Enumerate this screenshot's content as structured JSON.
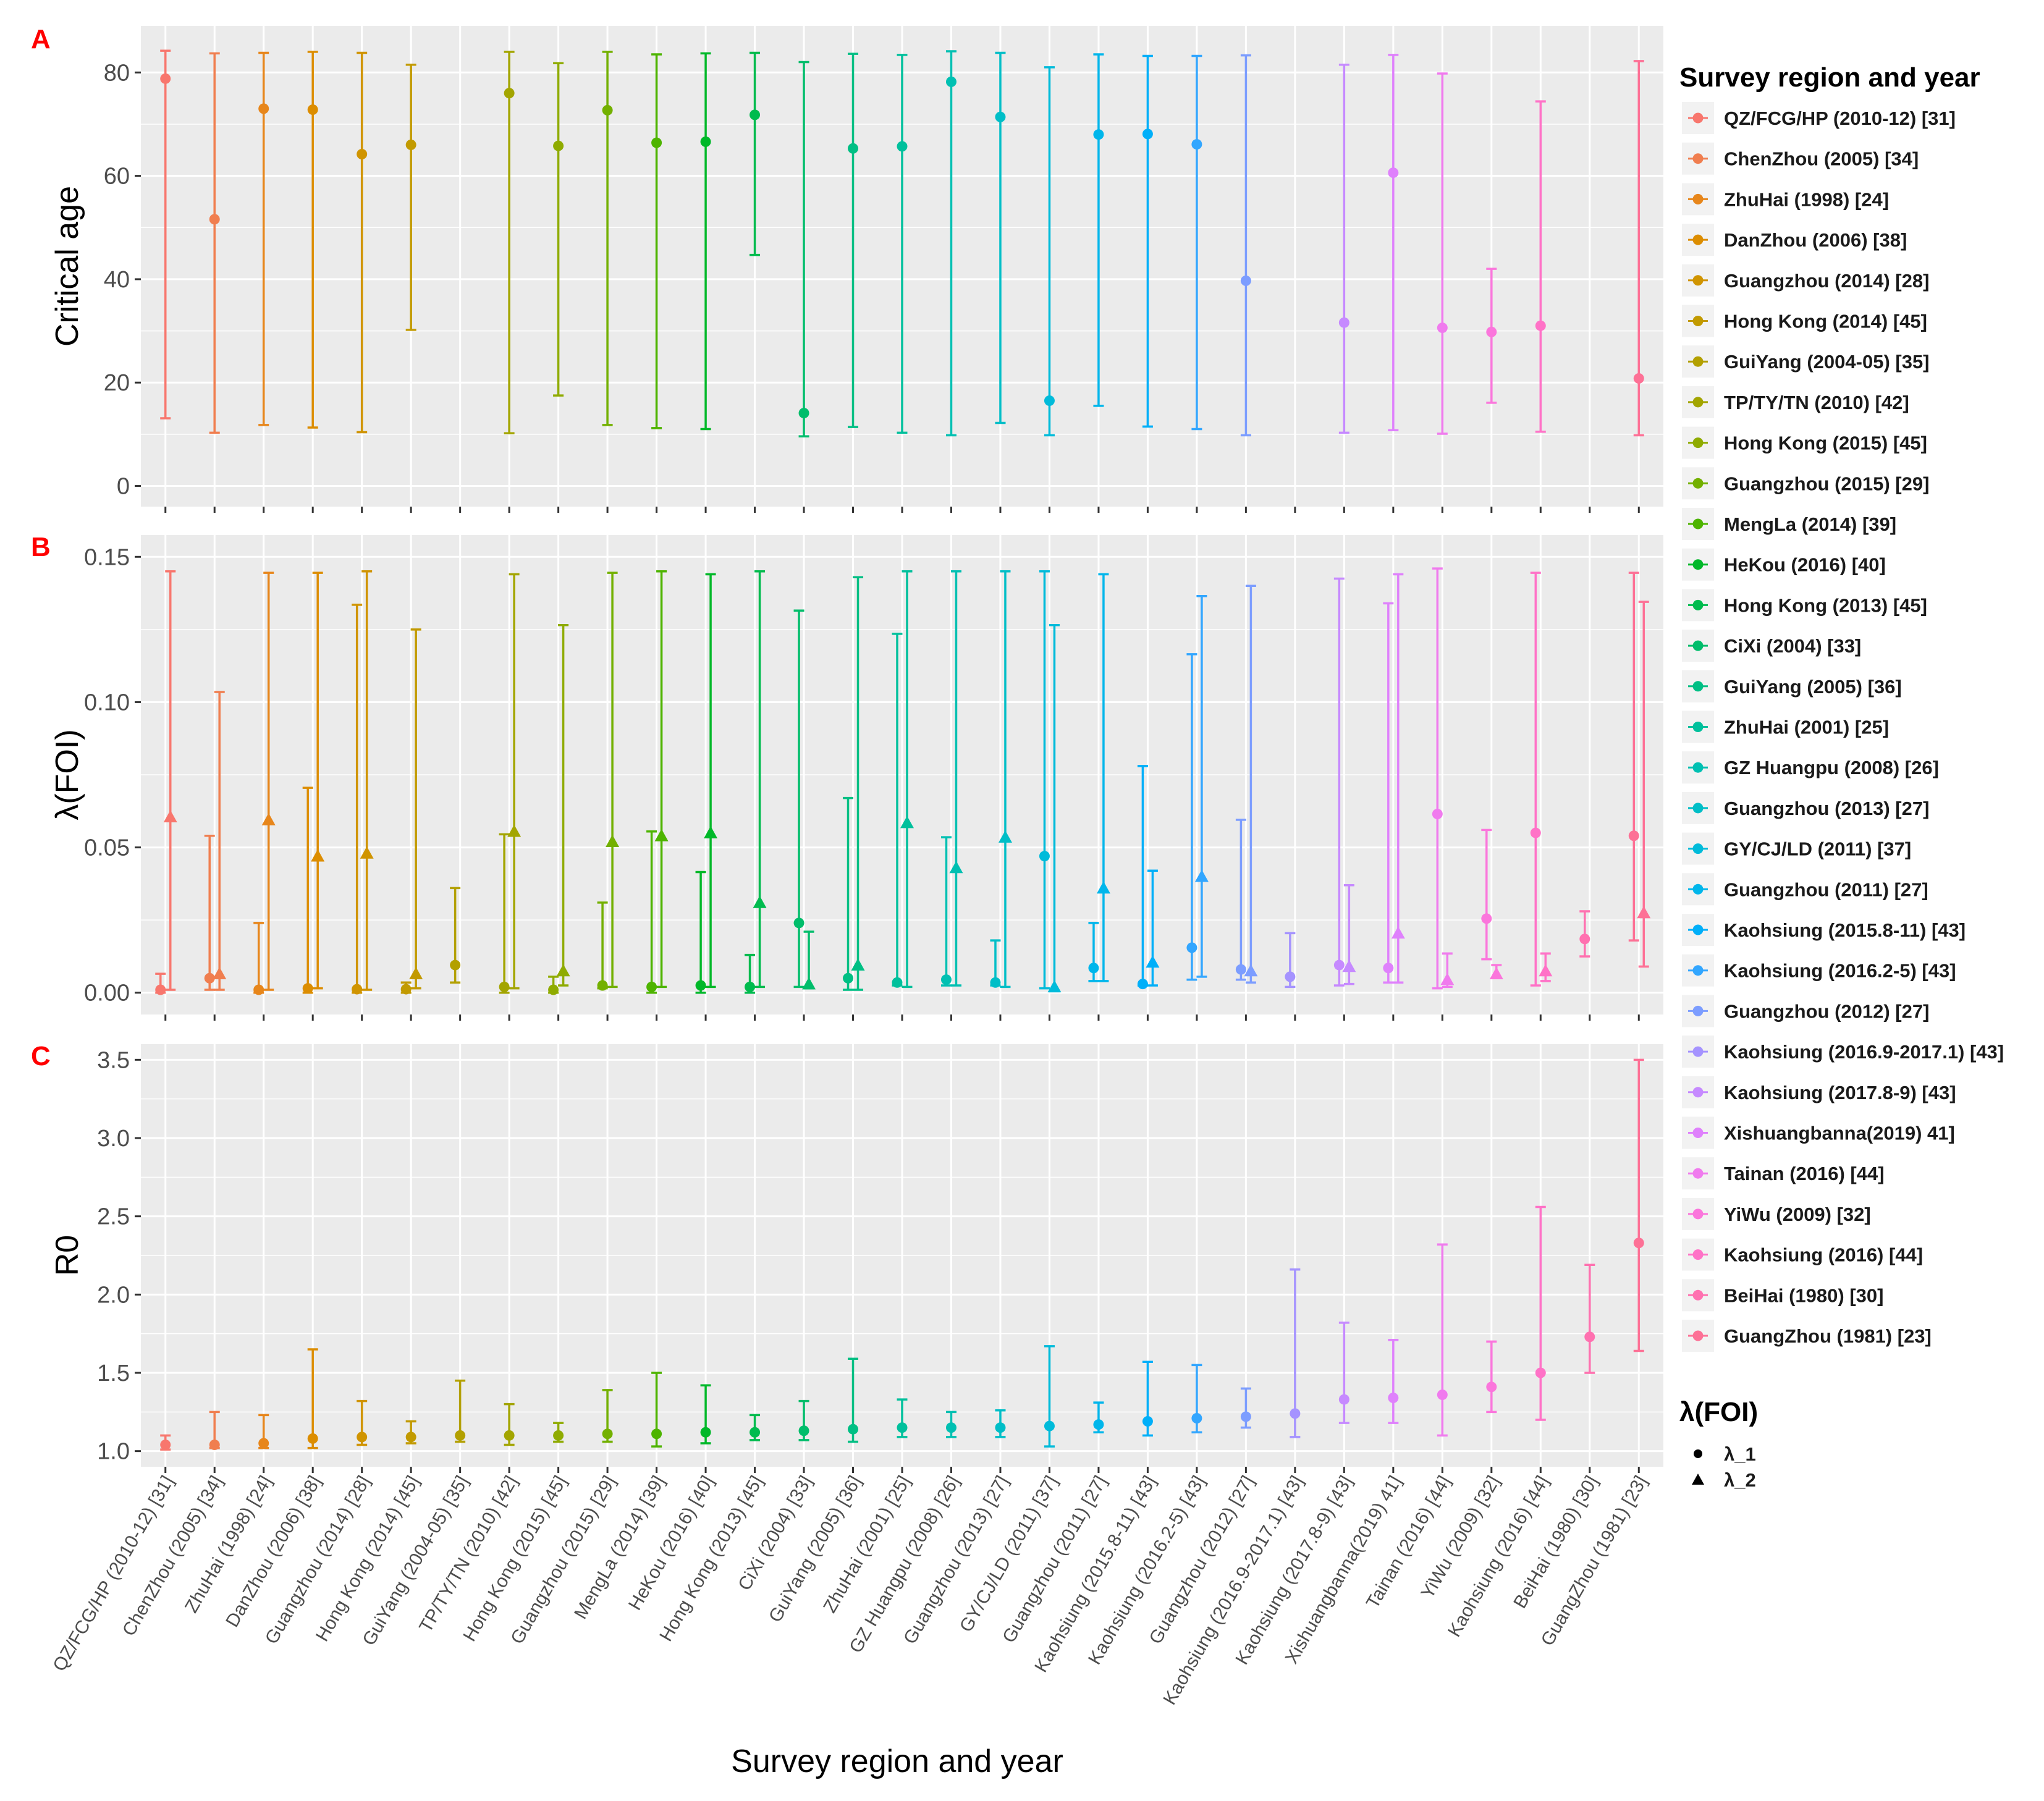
{
  "chart_data": {
    "type": "errorbar",
    "categories": [
      "QZ/FCG/HP (2010-12) [31]",
      "ChenZhou (2005) [34]",
      "ZhuHai (1998) [24]",
      "DanZhou (2006) [38]",
      "Guangzhou (2014) [28]",
      "Hong Kong (2014) [45]",
      "GuiYang (2004-05) [35]",
      "TP/TY/TN (2010) [42]",
      "Hong Kong (2015) [45]",
      "Guangzhou (2015) [29]",
      "MengLa (2014) [39]",
      "HeKou (2016) [40]",
      "Hong Kong (2013) [45]",
      "CiXi (2004) [33]",
      "GuiYang (2005) [36]",
      "ZhuHai (2001) [25]",
      "GZ Huangpu (2008) [26]",
      "Guangzhou (2013) [27]",
      "GY/CJ/LD (2011) [37]",
      "Guangzhou (2011) [27]",
      "Kaohsiung (2015.8-11) [43]",
      "Kaohsiung (2016.2-5) [43]",
      "Guangzhou (2012) [27]",
      "Kaohsiung (2016.9-2017.1) [43]",
      "Kaohsiung (2017.8-9) [43]",
      "Xishuangbanna(2019) 41]",
      "Tainan (2016) [44]",
      "YiWu (2009) [32]",
      "Kaohsiung (2016) [44]",
      "BeiHai (1980) [30]",
      "GuangZhou (1981) [23]"
    ],
    "colors": [
      "#f8766d",
      "#f07e4f",
      "#e7861b",
      "#dc8d00",
      "#d09400",
      "#c29a00",
      "#b3a000",
      "#a3a500",
      "#8fab00",
      "#73b000",
      "#4eb400",
      "#00b829",
      "#00bb4e",
      "#00bd6b",
      "#00bf84",
      "#00c09c",
      "#00c0b2",
      "#00bec7",
      "#00bbda",
      "#00b6eb",
      "#00aff9",
      "#32a6ff",
      "#7c9dff",
      "#a593ff",
      "#c68aff",
      "#df81fc",
      "#f07bee",
      "#fb76dc",
      "#ff72c7",
      "#ff71b0",
      "#fd7196"
    ],
    "panels": [
      {
        "label": "A",
        "ylabel": "Critical age",
        "ylim": [
          -4,
          89
        ],
        "yticks": [
          0,
          20,
          40,
          60,
          80
        ],
        "ytick_labels": [
          "0",
          "20",
          "40",
          "60",
          "80"
        ],
        "points": [
          {
            "cat": 0,
            "y": 78.8,
            "lo": 13.1,
            "hi": 84.2
          },
          {
            "cat": 1,
            "y": 51.6,
            "lo": 10.3,
            "hi": 83.7
          },
          {
            "cat": 2,
            "y": 73.0,
            "lo": 11.8,
            "hi": 83.8
          },
          {
            "cat": 3,
            "y": 72.8,
            "lo": 11.3,
            "hi": 84.0
          },
          {
            "cat": 4,
            "y": 64.2,
            "lo": 10.4,
            "hi": 83.8
          },
          {
            "cat": 5,
            "y": 66.0,
            "lo": 30.2,
            "hi": 81.5
          },
          {
            "cat": 7,
            "y": 76.0,
            "lo": 10.2,
            "hi": 84.0
          },
          {
            "cat": 8,
            "y": 65.8,
            "lo": 17.5,
            "hi": 81.8
          },
          {
            "cat": 9,
            "y": 72.7,
            "lo": 11.8,
            "hi": 84.0
          },
          {
            "cat": 10,
            "y": 66.4,
            "lo": 11.2,
            "hi": 83.5
          },
          {
            "cat": 11,
            "y": 66.6,
            "lo": 11.0,
            "hi": 83.7
          },
          {
            "cat": 12,
            "y": 71.8,
            "lo": 44.7,
            "hi": 83.8
          },
          {
            "cat": 13,
            "y": 14.1,
            "lo": 9.6,
            "hi": 82.0
          },
          {
            "cat": 14,
            "y": 65.3,
            "lo": 11.4,
            "hi": 83.6
          },
          {
            "cat": 15,
            "y": 65.7,
            "lo": 10.3,
            "hi": 83.4
          },
          {
            "cat": 16,
            "y": 78.2,
            "lo": 9.8,
            "hi": 84.1
          },
          {
            "cat": 17,
            "y": 71.4,
            "lo": 12.2,
            "hi": 83.8
          },
          {
            "cat": 18,
            "y": 16.5,
            "lo": 9.8,
            "hi": 81.0
          },
          {
            "cat": 19,
            "y": 68.0,
            "lo": 15.5,
            "hi": 83.5
          },
          {
            "cat": 20,
            "y": 68.1,
            "lo": 11.5,
            "hi": 83.2
          },
          {
            "cat": 21,
            "y": 66.1,
            "lo": 11.0,
            "hi": 83.2
          },
          {
            "cat": 22,
            "y": 39.7,
            "lo": 9.8,
            "hi": 83.3
          },
          {
            "cat": 24,
            "y": 31.6,
            "lo": 10.3,
            "hi": 81.5
          },
          {
            "cat": 25,
            "y": 60.6,
            "lo": 10.8,
            "hi": 83.4
          },
          {
            "cat": 26,
            "y": 30.6,
            "lo": 10.1,
            "hi": 79.8
          },
          {
            "cat": 27,
            "y": 29.8,
            "lo": 16.1,
            "hi": 42.0
          },
          {
            "cat": 28,
            "y": 31.0,
            "lo": 10.5,
            "hi": 74.4
          },
          {
            "cat": 30,
            "y": 20.8,
            "lo": 9.8,
            "hi": 82.2
          }
        ]
      },
      {
        "label": "B",
        "ylabel": "λ(FOI)",
        "ylim": [
          -0.0075,
          0.1575
        ],
        "yticks": [
          0,
          0.05,
          0.1,
          0.15
        ],
        "ytick_labels": [
          "0.00",
          "0.05",
          "0.10",
          "0.15"
        ],
        "points": [
          {
            "cat": 0,
            "shape": "circle",
            "y": 0.001,
            "lo": 0.0,
            "hi": 0.0065
          },
          {
            "cat": 0,
            "shape": "triangle",
            "y": 0.0605,
            "lo": 0.001,
            "hi": 0.145
          },
          {
            "cat": 1,
            "shape": "circle",
            "y": 0.005,
            "lo": 0.001,
            "hi": 0.054
          },
          {
            "cat": 1,
            "shape": "triangle",
            "y": 0.0065,
            "lo": 0.001,
            "hi": 0.1035
          },
          {
            "cat": 2,
            "shape": "circle",
            "y": 0.001,
            "lo": 0.0,
            "hi": 0.024
          },
          {
            "cat": 2,
            "shape": "triangle",
            "y": 0.0595,
            "lo": 0.001,
            "hi": 0.1445
          },
          {
            "cat": 3,
            "shape": "circle",
            "y": 0.0015,
            "lo": 0.0,
            "hi": 0.0705
          },
          {
            "cat": 3,
            "shape": "triangle",
            "y": 0.047,
            "lo": 0.0015,
            "hi": 0.1445
          },
          {
            "cat": 4,
            "shape": "circle",
            "y": 0.0012,
            "lo": 0.0,
            "hi": 0.1335
          },
          {
            "cat": 4,
            "shape": "triangle",
            "y": 0.048,
            "lo": 0.001,
            "hi": 0.145
          },
          {
            "cat": 5,
            "shape": "circle",
            "y": 0.0012,
            "lo": 0.0,
            "hi": 0.0035
          },
          {
            "cat": 5,
            "shape": "triangle",
            "y": 0.0065,
            "lo": 0.0015,
            "hi": 0.125
          },
          {
            "cat": 6,
            "shape": "circle",
            "y": 0.0095,
            "lo": 0.0035,
            "hi": 0.036
          },
          {
            "cat": 7,
            "shape": "circle",
            "y": 0.002,
            "lo": 0.0,
            "hi": 0.0545
          },
          {
            "cat": 7,
            "shape": "triangle",
            "y": 0.0555,
            "lo": 0.0015,
            "hi": 0.144
          },
          {
            "cat": 8,
            "shape": "circle",
            "y": 0.001,
            "lo": 0.0,
            "hi": 0.0055
          },
          {
            "cat": 8,
            "shape": "triangle",
            "y": 0.0075,
            "lo": 0.0025,
            "hi": 0.1265
          },
          {
            "cat": 9,
            "shape": "circle",
            "y": 0.0025,
            "lo": 0.0015,
            "hi": 0.031
          },
          {
            "cat": 9,
            "shape": "triangle",
            "y": 0.052,
            "lo": 0.002,
            "hi": 0.1445
          },
          {
            "cat": 10,
            "shape": "circle",
            "y": 0.002,
            "lo": 0.0,
            "hi": 0.0555
          },
          {
            "cat": 10,
            "shape": "triangle",
            "y": 0.054,
            "lo": 0.002,
            "hi": 0.145
          },
          {
            "cat": 11,
            "shape": "circle",
            "y": 0.0025,
            "lo": 0.0,
            "hi": 0.0415
          },
          {
            "cat": 11,
            "shape": "triangle",
            "y": 0.055,
            "lo": 0.002,
            "hi": 0.144
          },
          {
            "cat": 12,
            "shape": "circle",
            "y": 0.002,
            "lo": 0.0,
            "hi": 0.013
          },
          {
            "cat": 12,
            "shape": "triangle",
            "y": 0.031,
            "lo": 0.002,
            "hi": 0.145
          },
          {
            "cat": 13,
            "shape": "circle",
            "y": 0.024,
            "lo": 0.002,
            "hi": 0.1315
          },
          {
            "cat": 13,
            "shape": "triangle",
            "y": 0.003,
            "lo": 0.0015,
            "hi": 0.021
          },
          {
            "cat": 14,
            "shape": "circle",
            "y": 0.005,
            "lo": 0.001,
            "hi": 0.067
          },
          {
            "cat": 14,
            "shape": "triangle",
            "y": 0.0095,
            "lo": 0.001,
            "hi": 0.143
          },
          {
            "cat": 15,
            "shape": "circle",
            "y": 0.0035,
            "lo": 0.0025,
            "hi": 0.1235
          },
          {
            "cat": 15,
            "shape": "triangle",
            "y": 0.0585,
            "lo": 0.002,
            "hi": 0.145
          },
          {
            "cat": 16,
            "shape": "circle",
            "y": 0.0045,
            "lo": 0.0025,
            "hi": 0.0535
          },
          {
            "cat": 16,
            "shape": "triangle",
            "y": 0.043,
            "lo": 0.0025,
            "hi": 0.145
          },
          {
            "cat": 17,
            "shape": "circle",
            "y": 0.0035,
            "lo": 0.0025,
            "hi": 0.018
          },
          {
            "cat": 17,
            "shape": "triangle",
            "y": 0.0535,
            "lo": 0.002,
            "hi": 0.145
          },
          {
            "cat": 18,
            "shape": "circle",
            "y": 0.047,
            "lo": 0.0015,
            "hi": 0.145
          },
          {
            "cat": 18,
            "shape": "triangle",
            "y": 0.002,
            "lo": 0.0005,
            "hi": 0.1265
          },
          {
            "cat": 19,
            "shape": "circle",
            "y": 0.0085,
            "lo": 0.004,
            "hi": 0.024
          },
          {
            "cat": 19,
            "shape": "triangle",
            "y": 0.036,
            "lo": 0.004,
            "hi": 0.144
          },
          {
            "cat": 20,
            "shape": "circle",
            "y": 0.003,
            "lo": 0.0025,
            "hi": 0.078
          },
          {
            "cat": 20,
            "shape": "triangle",
            "y": 0.0105,
            "lo": 0.0025,
            "hi": 0.042
          },
          {
            "cat": 21,
            "shape": "circle",
            "y": 0.0155,
            "lo": 0.0045,
            "hi": 0.1165
          },
          {
            "cat": 21,
            "shape": "triangle",
            "y": 0.04,
            "lo": 0.0055,
            "hi": 0.1365
          },
          {
            "cat": 22,
            "shape": "circle",
            "y": 0.008,
            "lo": 0.0045,
            "hi": 0.0595
          },
          {
            "cat": 22,
            "shape": "triangle",
            "y": 0.0075,
            "lo": 0.0035,
            "hi": 0.14
          },
          {
            "cat": 23,
            "shape": "circle",
            "y": 0.0055,
            "lo": 0.002,
            "hi": 0.0205
          },
          {
            "cat": 24,
            "shape": "circle",
            "y": 0.0095,
            "lo": 0.0025,
            "hi": 0.1425
          },
          {
            "cat": 24,
            "shape": "triangle",
            "y": 0.009,
            "lo": 0.003,
            "hi": 0.037
          },
          {
            "cat": 25,
            "shape": "circle",
            "y": 0.0085,
            "lo": 0.0035,
            "hi": 0.134
          },
          {
            "cat": 25,
            "shape": "triangle",
            "y": 0.0205,
            "lo": 0.0035,
            "hi": 0.144
          },
          {
            "cat": 26,
            "shape": "circle",
            "y": 0.0615,
            "lo": 0.0015,
            "hi": 0.146
          },
          {
            "cat": 26,
            "shape": "triangle",
            "y": 0.0045,
            "lo": 0.002,
            "hi": 0.0135
          },
          {
            "cat": 27,
            "shape": "circle",
            "y": 0.0255,
            "lo": 0.0115,
            "hi": 0.056
          },
          {
            "cat": 27,
            "shape": "triangle",
            "y": 0.0065,
            "lo": 0.005,
            "hi": 0.0095
          },
          {
            "cat": 28,
            "shape": "circle",
            "y": 0.055,
            "lo": 0.0025,
            "hi": 0.1445
          },
          {
            "cat": 28,
            "shape": "triangle",
            "y": 0.0075,
            "lo": 0.004,
            "hi": 0.0135
          },
          {
            "cat": 29,
            "shape": "circle",
            "y": 0.0185,
            "lo": 0.0125,
            "hi": 0.028
          },
          {
            "cat": 30,
            "shape": "circle",
            "y": 0.054,
            "lo": 0.018,
            "hi": 0.1445
          },
          {
            "cat": 30,
            "shape": "triangle",
            "y": 0.0275,
            "lo": 0.009,
            "hi": 0.1345
          }
        ]
      },
      {
        "label": "C",
        "ylabel": "R0",
        "ylim": [
          0.9,
          3.6
        ],
        "yticks": [
          1.0,
          1.5,
          2.0,
          2.5,
          3.0,
          3.5
        ],
        "ytick_labels": [
          "1.0",
          "1.5",
          "2.0",
          "2.5",
          "3.0",
          "3.5"
        ],
        "points": [
          {
            "cat": 0,
            "y": 1.04,
            "lo": 1.01,
            "hi": 1.1
          },
          {
            "cat": 1,
            "y": 1.04,
            "lo": 1.02,
            "hi": 1.25
          },
          {
            "cat": 2,
            "y": 1.05,
            "lo": 1.02,
            "hi": 1.23
          },
          {
            "cat": 3,
            "y": 1.08,
            "lo": 1.02,
            "hi": 1.65
          },
          {
            "cat": 4,
            "y": 1.09,
            "lo": 1.04,
            "hi": 1.32
          },
          {
            "cat": 5,
            "y": 1.09,
            "lo": 1.05,
            "hi": 1.19
          },
          {
            "cat": 6,
            "y": 1.1,
            "lo": 1.06,
            "hi": 1.45
          },
          {
            "cat": 7,
            "y": 1.1,
            "lo": 1.04,
            "hi": 1.3
          },
          {
            "cat": 8,
            "y": 1.1,
            "lo": 1.06,
            "hi": 1.18
          },
          {
            "cat": 9,
            "y": 1.11,
            "lo": 1.06,
            "hi": 1.39
          },
          {
            "cat": 10,
            "y": 1.11,
            "lo": 1.03,
            "hi": 1.5
          },
          {
            "cat": 11,
            "y": 1.12,
            "lo": 1.05,
            "hi": 1.42
          },
          {
            "cat": 12,
            "y": 1.12,
            "lo": 1.07,
            "hi": 1.23
          },
          {
            "cat": 13,
            "y": 1.13,
            "lo": 1.07,
            "hi": 1.32
          },
          {
            "cat": 14,
            "y": 1.14,
            "lo": 1.06,
            "hi": 1.59
          },
          {
            "cat": 15,
            "y": 1.15,
            "lo": 1.09,
            "hi": 1.33
          },
          {
            "cat": 16,
            "y": 1.15,
            "lo": 1.09,
            "hi": 1.25
          },
          {
            "cat": 17,
            "y": 1.15,
            "lo": 1.09,
            "hi": 1.26
          },
          {
            "cat": 18,
            "y": 1.16,
            "lo": 1.03,
            "hi": 1.67
          },
          {
            "cat": 19,
            "y": 1.17,
            "lo": 1.12,
            "hi": 1.31
          },
          {
            "cat": 20,
            "y": 1.19,
            "lo": 1.1,
            "hi": 1.57
          },
          {
            "cat": 21,
            "y": 1.21,
            "lo": 1.12,
            "hi": 1.55
          },
          {
            "cat": 22,
            "y": 1.22,
            "lo": 1.15,
            "hi": 1.4
          },
          {
            "cat": 23,
            "y": 1.24,
            "lo": 1.09,
            "hi": 2.16
          },
          {
            "cat": 24,
            "y": 1.33,
            "lo": 1.18,
            "hi": 1.82
          },
          {
            "cat": 25,
            "y": 1.34,
            "lo": 1.18,
            "hi": 1.71
          },
          {
            "cat": 26,
            "y": 1.36,
            "lo": 1.1,
            "hi": 2.32
          },
          {
            "cat": 27,
            "y": 1.41,
            "lo": 1.25,
            "hi": 1.7
          },
          {
            "cat": 28,
            "y": 1.5,
            "lo": 1.2,
            "hi": 2.56
          },
          {
            "cat": 29,
            "y": 1.73,
            "lo": 1.5,
            "hi": 2.19
          },
          {
            "cat": 30,
            "y": 2.33,
            "lo": 1.64,
            "hi": 3.5
          }
        ]
      }
    ],
    "xlabel": "Survey region and year",
    "legend": {
      "title": "Survey region and year",
      "position": "right",
      "shape_title": "λ(FOI)",
      "shape_items": [
        {
          "shape": "circle",
          "label": "λ_1"
        },
        {
          "shape": "triangle",
          "label": "λ_2"
        }
      ]
    }
  }
}
